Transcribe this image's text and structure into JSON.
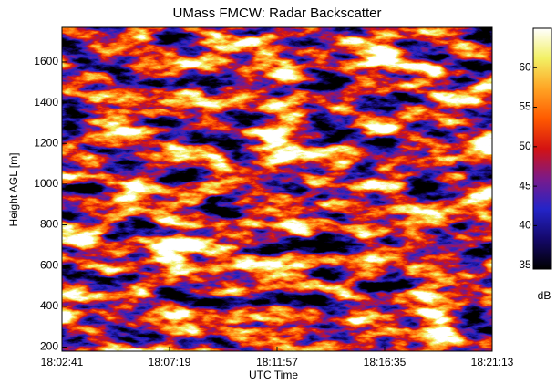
{
  "chart_data": {
    "type": "heatmap",
    "title": "UMass FMCW: Radar Backscatter",
    "xlabel": "UTC Time",
    "ylabel": "Height AGL [m]",
    "xlim": [
      "18:02:41",
      "18:21:13"
    ],
    "xticks": [
      "18:02:41",
      "18:07:19",
      "18:11:57",
      "18:16:35",
      "18:21:13"
    ],
    "ylim": [
      180,
      1770
    ],
    "yticks": [
      200,
      400,
      600,
      800,
      1000,
      1200,
      1400,
      1600
    ],
    "colorbar": {
      "label": "dB",
      "lim": [
        34.5,
        65
      ],
      "ticks": [
        35,
        40,
        45,
        50,
        55,
        60
      ]
    },
    "colormap": [
      "#000000",
      "#14086a",
      "#2424c8",
      "#7a1a8a",
      "#d41212",
      "#ff5a00",
      "#ffa424",
      "#f2f064",
      "#ffffff"
    ]
  }
}
